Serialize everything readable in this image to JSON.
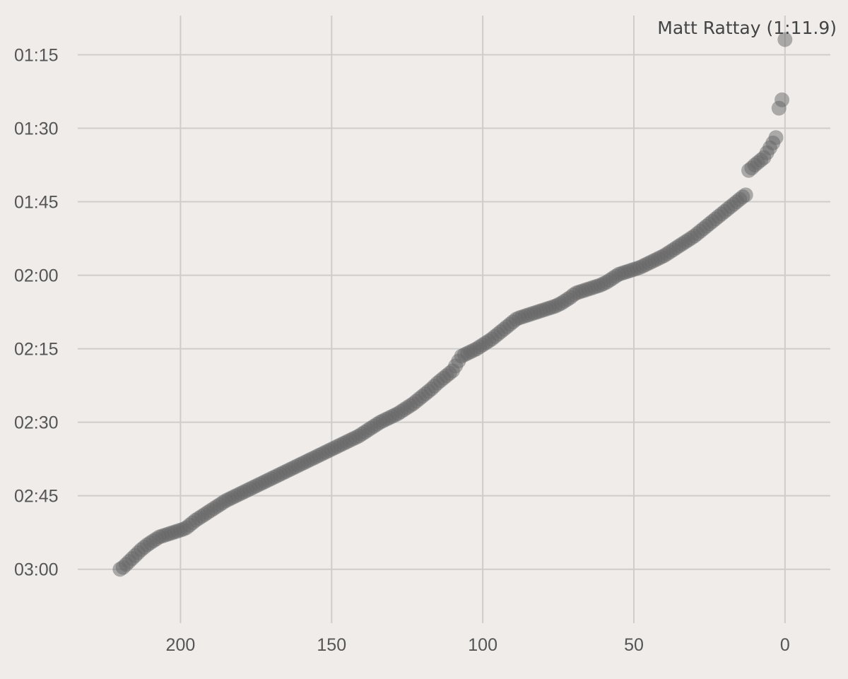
{
  "chart_data": {
    "type": "scatter",
    "title": "",
    "xlabel": "",
    "ylabel": "",
    "x_reversed": true,
    "y_reversed": true,
    "xlim": [
      234,
      -15
    ],
    "ylim_seconds": [
      191,
      67
    ],
    "grid": true,
    "x_ticks": [
      {
        "value": 200,
        "label": "200"
      },
      {
        "value": 150,
        "label": "150"
      },
      {
        "value": 100,
        "label": "100"
      },
      {
        "value": 50,
        "label": "50"
      },
      {
        "value": 0,
        "label": "0"
      }
    ],
    "y_ticks": [
      {
        "value": 75,
        "label": "01:15"
      },
      {
        "value": 90,
        "label": "01:30"
      },
      {
        "value": 105,
        "label": "01:45"
      },
      {
        "value": 120,
        "label": "02:00"
      },
      {
        "value": 135,
        "label": "02:15"
      },
      {
        "value": 150,
        "label": "02:30"
      },
      {
        "value": 165,
        "label": "02:45"
      },
      {
        "value": 180,
        "label": "03:00"
      }
    ],
    "annotation": {
      "text": "Matt Rattay (1:11.9)",
      "x": 0,
      "y": 71.9
    },
    "point_color": "#666666",
    "series": [
      {
        "x_start": 0,
        "y_seconds": [
          71.9,
          84.2,
          85.9,
          91.9,
          93.0,
          94.0,
          95.0,
          96.0,
          96.5,
          97.0,
          97.5,
          98.1,
          98.6,
          103.6,
          104.0,
          104.5,
          105.0,
          105.5,
          106.0,
          106.5,
          107.0,
          107.5,
          108.0,
          108.5,
          109.0,
          109.5,
          110.0,
          110.5,
          111.0,
          111.5,
          112.0,
          112.4,
          112.8,
          113.2,
          113.6,
          114.0,
          114.4,
          114.8,
          115.2,
          115.6,
          116.0,
          116.3,
          116.6,
          116.9,
          117.2,
          117.5,
          117.8,
          118.1,
          118.4,
          118.6,
          118.8,
          119.0,
          119.2,
          119.4,
          119.6,
          119.8,
          120.2,
          120.6,
          121.0,
          121.4,
          121.7,
          122.0,
          122.2,
          122.4,
          122.6,
          122.8,
          123.0,
          123.2,
          123.4,
          123.6,
          124.0,
          124.5,
          124.9,
          125.3,
          125.7,
          126.0,
          126.3,
          126.5,
          126.7,
          126.9,
          127.1,
          127.3,
          127.5,
          127.7,
          127.9,
          128.1,
          128.3,
          128.5,
          128.7,
          129.0,
          129.5,
          130.0,
          130.5,
          131.0,
          131.5,
          132.0,
          132.5,
          133.0,
          133.4,
          133.8,
          134.2,
          134.6,
          135.0,
          135.3,
          135.6,
          135.9,
          136.2,
          136.5,
          137.5,
          138.5,
          139.5,
          140.0,
          140.5,
          141.0,
          141.5,
          142.0,
          142.6,
          143.2,
          143.7,
          144.2,
          144.7,
          145.2,
          145.7,
          146.2,
          146.6,
          147.0,
          147.4,
          147.8,
          148.2,
          148.5,
          148.8,
          149.1,
          149.4,
          149.7,
          150.0,
          150.4,
          150.8,
          151.2,
          151.6,
          152.0,
          152.4,
          152.8,
          153.1,
          153.4,
          153.7,
          154.0,
          154.3,
          154.6,
          154.9,
          155.2,
          155.5,
          155.8,
          156.1,
          156.4,
          156.7,
          157.0,
          157.3,
          157.6,
          157.9,
          158.2,
          158.5,
          158.8,
          159.1,
          159.4,
          159.7,
          160.0,
          160.3,
          160.6,
          160.9,
          161.2,
          161.5,
          161.8,
          162.1,
          162.4,
          162.7,
          163.0,
          163.3,
          163.6,
          163.9,
          164.2,
          164.5,
          164.8,
          165.1,
          165.4,
          165.7,
          166.0,
          166.4,
          166.8,
          167.2,
          167.6,
          168.0,
          168.4,
          168.8,
          169.2,
          169.6,
          170.0,
          170.5,
          171.0,
          171.5,
          171.8,
          172.0,
          172.2,
          172.4,
          172.6,
          172.8,
          173.0,
          173.2,
          173.4,
          173.8,
          174.2,
          174.6,
          175.0,
          175.5,
          176.0,
          176.6,
          177.2,
          177.8,
          178.4,
          179.0,
          179.6,
          180.0
        ]
      }
    ]
  }
}
